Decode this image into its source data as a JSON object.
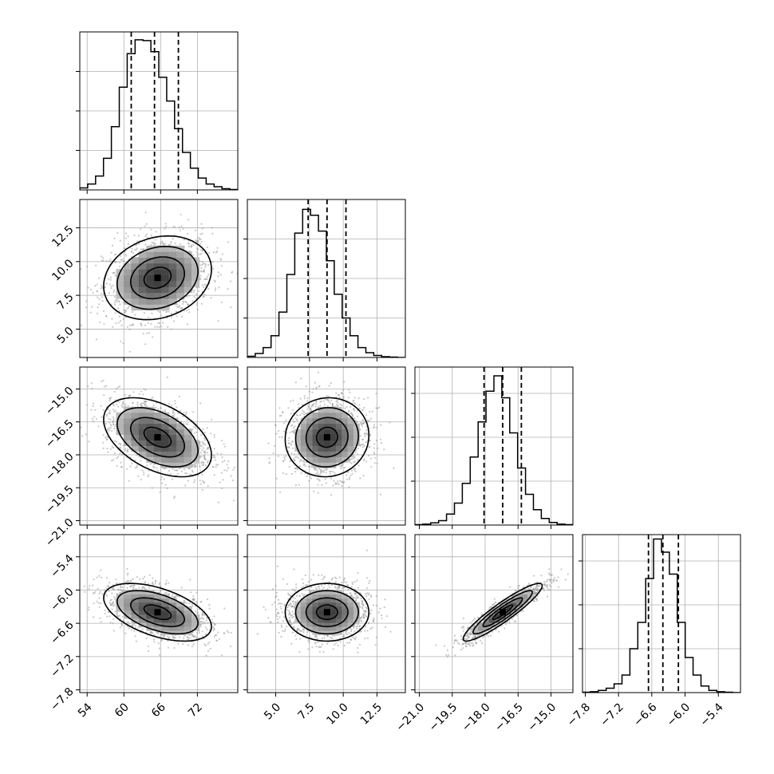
{
  "chart_data": {
    "type": "corner",
    "grid": true,
    "colors": {
      "line": "#000000",
      "grid": "#b0b0b0",
      "scatter": "#9a9a9a"
    },
    "parameters": [
      {
        "id": "p0",
        "mean": 65.5,
        "sd": 4.4,
        "ticks": [
          54,
          60,
          66,
          72
        ],
        "tick_labels": [
          "54",
          "60",
          "66",
          "72"
        ],
        "range": [
          52.8,
          78.6
        ],
        "quantiles": [
          61.2,
          65.0,
          68.9
        ]
      },
      {
        "id": "p1",
        "mean": 8.8,
        "sd": 1.55,
        "ticks": [
          5.0,
          7.5,
          10.0,
          12.5
        ],
        "tick_labels": [
          "5.0",
          "7.5",
          "10.0",
          "12.5"
        ],
        "range": [
          2.9,
          14.6
        ],
        "quantiles": [
          7.4,
          8.8,
          10.2
        ]
      },
      {
        "id": "p2",
        "mean": -17.2,
        "sd": 0.9,
        "ticks": [
          -21.0,
          -19.5,
          -18.0,
          -16.5,
          -15.0
        ],
        "tick_labels": [
          "−21.0",
          "−19.5",
          "−18.0",
          "−16.5",
          "−15.0"
        ],
        "range": [
          -21.2,
          -14.0
        ],
        "quantiles": [
          -18.05,
          -17.2,
          -16.35
        ]
      },
      {
        "id": "p3",
        "mean": -6.4,
        "sd": 0.26,
        "ticks": [
          -7.8,
          -7.2,
          -6.6,
          -6.0,
          -5.4
        ],
        "tick_labels": [
          "−7.8",
          "−7.2",
          "−6.6",
          "−6.0",
          "−5.4"
        ],
        "range": [
          -7.85,
          -5.0
        ],
        "quantiles": [
          -6.66,
          -6.4,
          -6.12
        ]
      }
    ],
    "correlations": [
      [
        1,
        0.2,
        -0.45,
        -0.5
      ],
      [
        0.2,
        1,
        0.05,
        0.0
      ],
      [
        -0.45,
        0.05,
        1,
        0.92
      ],
      [
        -0.5,
        0.0,
        0.92,
        1
      ]
    ],
    "histograms": [
      {
        "bins": 20,
        "counts": [
          5,
          15,
          35,
          80,
          160,
          260,
          345,
          380,
          378,
          350,
          285,
          225,
          155,
          95,
          55,
          30,
          15,
          8,
          3,
          1
        ],
        "ylim": [
          0,
          400
        ],
        "yticks": [
          100,
          200,
          300
        ]
      },
      {
        "bins": 20,
        "counts": [
          3,
          10,
          25,
          55,
          115,
          210,
          315,
          375,
          360,
          320,
          245,
          160,
          100,
          55,
          25,
          12,
          5,
          2,
          1,
          0
        ],
        "ylim": [
          0,
          400
        ],
        "yticks": [
          100,
          200,
          300
        ]
      },
      {
        "bins": 20,
        "counts": [
          1,
          2,
          5,
          10,
          25,
          50,
          95,
          155,
          235,
          305,
          340,
          290,
          210,
          130,
          70,
          35,
          15,
          6,
          2,
          1
        ],
        "ylim": [
          0,
          360
        ],
        "yticks": [
          100,
          200,
          300
        ]
      },
      {
        "bins": 20,
        "counts": [
          1,
          2,
          5,
          10,
          20,
          40,
          100,
          160,
          260,
          350,
          320,
          270,
          160,
          80,
          40,
          15,
          5,
          2,
          1,
          0
        ],
        "ylim": [
          0,
          360
        ],
        "yticks": [
          100,
          200,
          300
        ]
      }
    ],
    "contour_levels": [
      0.118,
      0.393,
      0.675,
      0.865
    ]
  }
}
